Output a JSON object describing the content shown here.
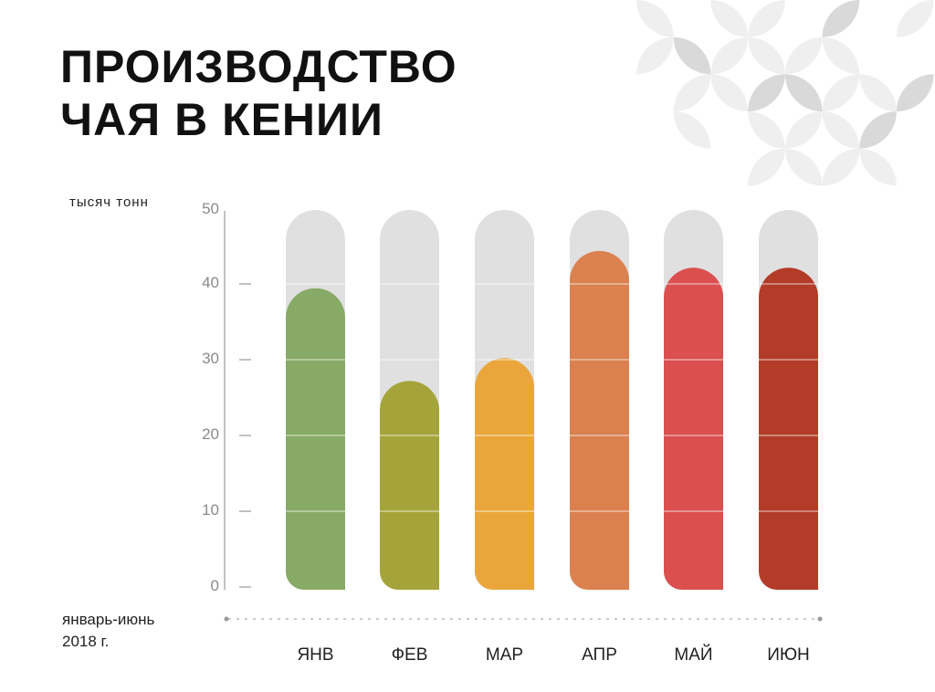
{
  "title_lines": [
    "ПРОИЗВОДСТВО",
    "ЧАЯ В КЕНИИ"
  ],
  "chart_data": {
    "type": "bar",
    "title": "ПРОИЗВОДСТВО ЧАЯ В КЕНИИ",
    "ylabel": "тысяч тонн",
    "xlabel": "январь-июнь 2018 г.",
    "xlabel_lines": [
      "январь-июнь",
      "2018 г."
    ],
    "ylim": [
      0,
      50
    ],
    "yticks": [
      "0",
      "10",
      "20",
      "30",
      "40",
      "50"
    ],
    "ytick_values": [
      0,
      10,
      20,
      30,
      40,
      50
    ],
    "categories": [
      "ЯНВ",
      "ФЕВ",
      "МАР",
      "АПР",
      "МАЙ",
      "ИЮН"
    ],
    "values": [
      39.7,
      27.5,
      30.5,
      44.6,
      42.4,
      42.4
    ],
    "colors": [
      "#87aa66",
      "#a5a43a",
      "#eba63b",
      "#da814f",
      "#db4f4f",
      "#b33c28"
    ],
    "track_color": "#e0e0e0",
    "grid": false,
    "legend": "none"
  }
}
